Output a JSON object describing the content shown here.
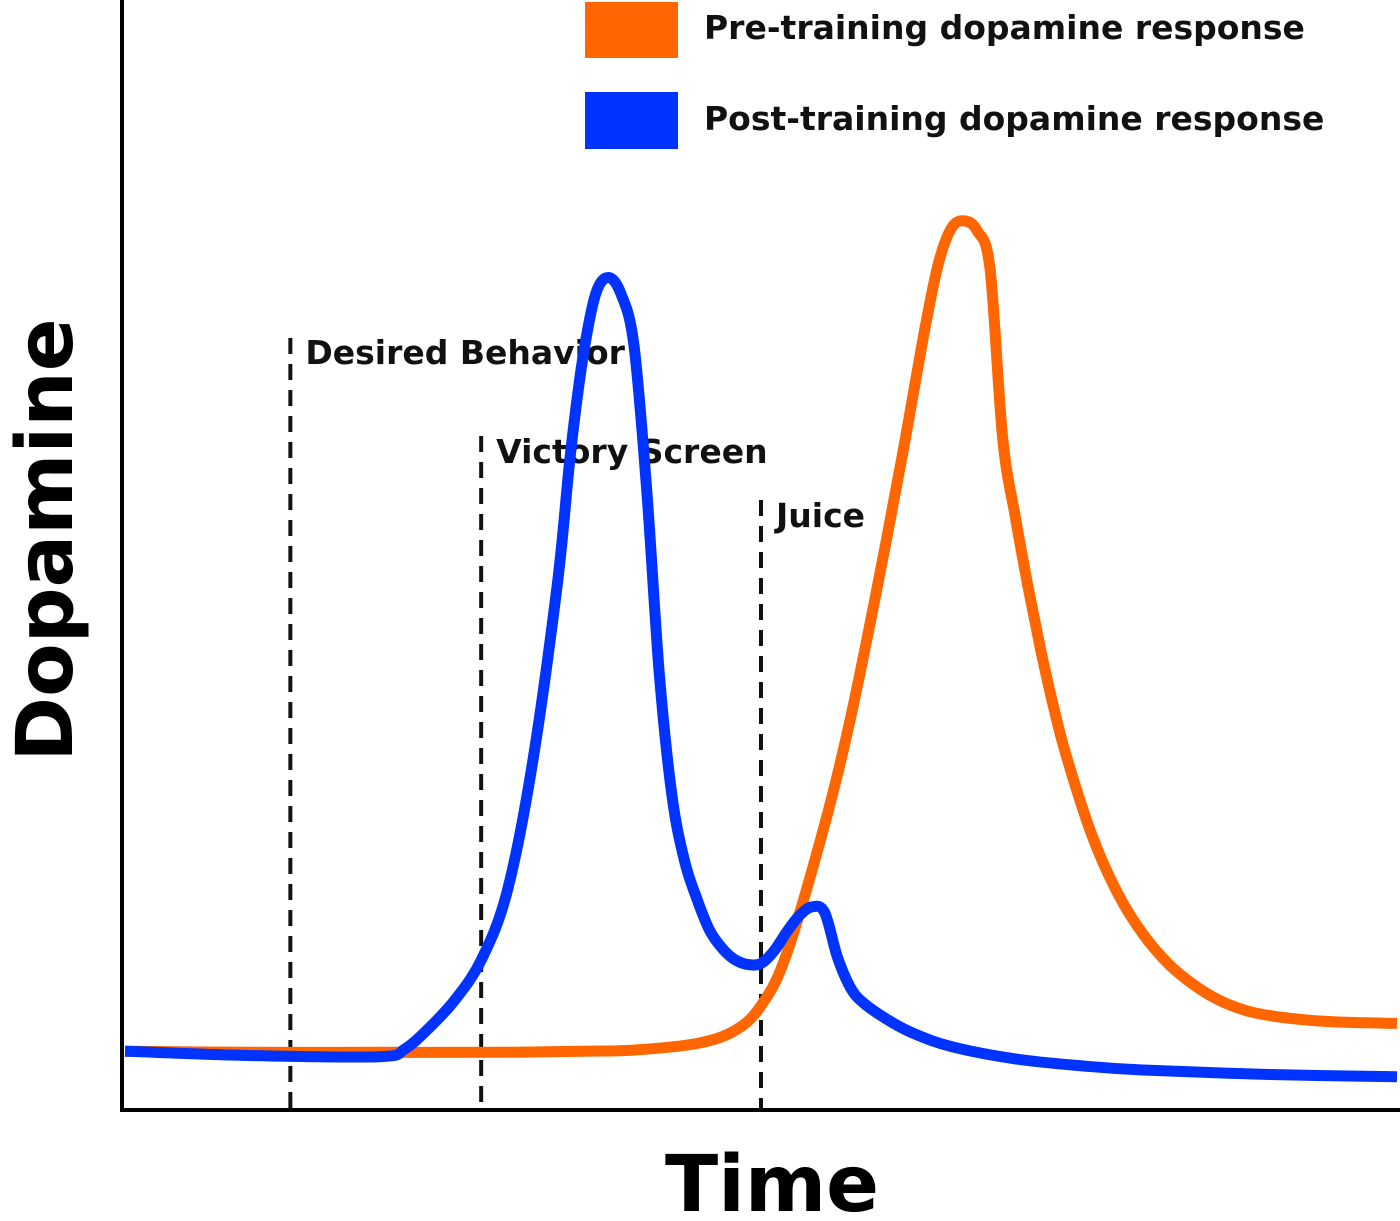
{
  "chart_data": {
    "type": "line",
    "title": "",
    "xlabel": "Time",
    "ylabel": "Dopamine",
    "xlim": [
      0,
      100
    ],
    "ylim": [
      0,
      100
    ],
    "grid": false,
    "legend_position": "top-right",
    "markers": [
      {
        "label": "Desired Behavior",
        "x": 13
      },
      {
        "label": "Victory Screen",
        "x": 28
      },
      {
        "label": "Juice",
        "x": 50
      }
    ],
    "series": [
      {
        "name": "Pre-training dopamine response",
        "color": "#ff6600",
        "x": [
          0,
          10,
          20,
          30,
          36,
          40,
          45,
          48,
          50,
          52,
          55,
          57,
          59,
          61,
          62,
          63,
          64,
          65,
          66,
          67,
          68,
          69,
          70,
          71,
          72,
          73,
          74,
          76,
          78,
          80,
          82,
          84,
          86,
          88,
          90,
          93,
          96,
          100
        ],
        "y": [
          5.3,
          5.2,
          5.2,
          5.2,
          5.3,
          5.4,
          6.0,
          7.2,
          9.4,
          14.0,
          25.7,
          35.1,
          46.3,
          58.3,
          64.7,
          71.1,
          76.5,
          79.5,
          80.1,
          79.2,
          75.8,
          60.5,
          53.4,
          47.1,
          41.4,
          36.3,
          31.9,
          24.8,
          19.6,
          15.9,
          13.2,
          11.3,
          9.9,
          9.0,
          8.5,
          8.1,
          7.9,
          7.8
        ]
      },
      {
        "name": "Post-training dopamine response",
        "color": "#0033ff",
        "x": [
          0,
          10,
          20,
          22,
          24,
          26,
          28,
          30,
          32,
          34,
          35,
          36,
          37,
          38,
          39,
          40,
          41,
          42,
          43,
          44,
          45,
          46,
          47,
          48,
          49,
          50,
          51,
          52,
          53,
          54,
          55,
          56,
          57,
          58,
          60,
          62,
          65,
          70,
          75,
          80,
          90,
          100
        ],
        "y": [
          5.3,
          4.9,
          4.8,
          5.5,
          7.5,
          10.0,
          13.5,
          19.5,
          31.0,
          47.5,
          58.9,
          67.8,
          73.5,
          75.0,
          73.5,
          69.0,
          56.1,
          39.4,
          28.3,
          22.4,
          18.9,
          16.1,
          14.5,
          13.5,
          13.1,
          13.2,
          14.3,
          16.0,
          17.5,
          18.3,
          17.8,
          13.8,
          11.1,
          9.7,
          8.1,
          6.9,
          5.7,
          4.6,
          4.0,
          3.6,
          3.2,
          3.0
        ]
      }
    ]
  }
}
